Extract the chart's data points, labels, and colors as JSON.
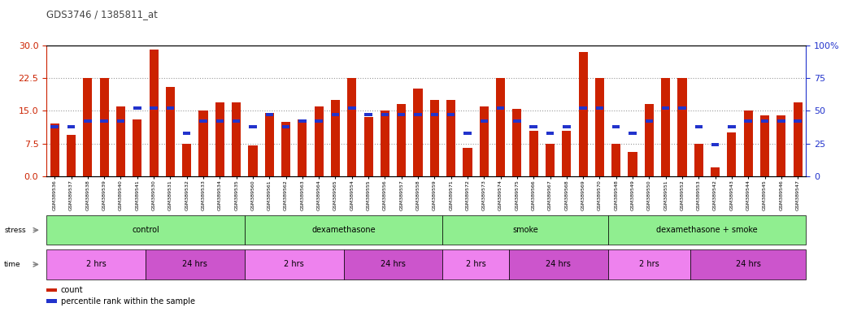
{
  "title": "GDS3746 / 1385811_at",
  "samples": [
    "GSM389536",
    "GSM389537",
    "GSM389538",
    "GSM389539",
    "GSM389540",
    "GSM389541",
    "GSM389530",
    "GSM389531",
    "GSM389532",
    "GSM389533",
    "GSM389534",
    "GSM389535",
    "GSM389560",
    "GSM389561",
    "GSM389562",
    "GSM389563",
    "GSM389564",
    "GSM389565",
    "GSM389554",
    "GSM389555",
    "GSM389556",
    "GSM389557",
    "GSM389558",
    "GSM389559",
    "GSM389571",
    "GSM389572",
    "GSM389573",
    "GSM389574",
    "GSM389575",
    "GSM389566",
    "GSM389567",
    "GSM389568",
    "GSM389569",
    "GSM389570",
    "GSM389548",
    "GSM389549",
    "GSM389550",
    "GSM389551",
    "GSM389552",
    "GSM389553",
    "GSM389542",
    "GSM389543",
    "GSM389544",
    "GSM389545",
    "GSM389546",
    "GSM389547"
  ],
  "count_values": [
    12.0,
    9.5,
    22.5,
    22.5,
    16.0,
    13.0,
    29.0,
    20.5,
    7.5,
    15.0,
    17.0,
    17.0,
    7.0,
    14.5,
    12.5,
    13.0,
    16.0,
    17.5,
    22.5,
    13.5,
    15.0,
    16.5,
    20.0,
    17.5,
    17.5,
    6.5,
    16.0,
    22.5,
    15.5,
    10.5,
    7.5,
    10.5,
    28.5,
    22.5,
    7.5,
    5.5,
    16.5,
    22.5,
    22.5,
    7.5,
    2.0,
    10.0,
    15.0,
    14.0,
    14.0,
    17.0
  ],
  "percentile_values": [
    38,
    38,
    42,
    42,
    42,
    52,
    52,
    52,
    33,
    42,
    42,
    42,
    38,
    47,
    38,
    42,
    42,
    47,
    52,
    47,
    47,
    47,
    47,
    47,
    47,
    33,
    42,
    52,
    42,
    38,
    33,
    38,
    52,
    52,
    38,
    33,
    42,
    52,
    52,
    38,
    24,
    38,
    42,
    42,
    42,
    42
  ],
  "ylim_left": [
    0,
    30
  ],
  "ylim_right": [
    0,
    100
  ],
  "yticks_left": [
    0,
    7.5,
    15,
    22.5,
    30
  ],
  "yticks_right": [
    0,
    25,
    50,
    75,
    100
  ],
  "bar_color": "#cc2200",
  "percentile_color": "#2233cc",
  "grid_color": "#999999",
  "bg_color": "#ffffff",
  "stress_labels": [
    "control",
    "dexamethasone",
    "smoke",
    "dexamethasone + smoke"
  ],
  "stress_ranges": [
    [
      0,
      12
    ],
    [
      12,
      24
    ],
    [
      24,
      34
    ],
    [
      34,
      46
    ]
  ],
  "stress_color": "#90ee90",
  "time_labels": [
    "2 hrs",
    "24 hrs",
    "2 hrs",
    "24 hrs",
    "2 hrs",
    "24 hrs",
    "2 hrs",
    "24 hrs"
  ],
  "time_colors": [
    "#ee82ee",
    "#cc55cc",
    "#ee82ee",
    "#cc55cc",
    "#ee82ee",
    "#cc55cc",
    "#ee82ee",
    "#cc55cc"
  ],
  "time_ranges": [
    [
      0,
      6
    ],
    [
      6,
      12
    ],
    [
      12,
      18
    ],
    [
      18,
      24
    ],
    [
      24,
      28
    ],
    [
      28,
      34
    ],
    [
      34,
      39
    ],
    [
      39,
      46
    ]
  ]
}
